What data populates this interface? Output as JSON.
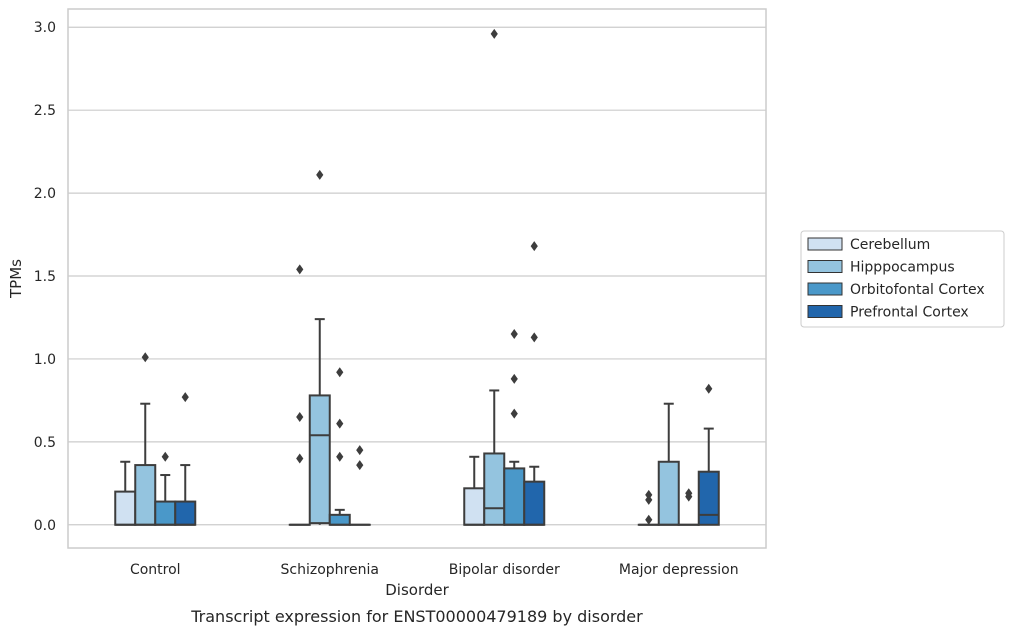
{
  "chart_data": {
    "type": "box",
    "title": "Transcript expression for ENST00000479189 by disorder",
    "xlabel": "Disorder",
    "ylabel": "TPMs",
    "ylim": [
      -0.14,
      3.11
    ],
    "yticks": [
      "0.0",
      "0.5",
      "1.0",
      "1.5",
      "2.0",
      "2.5",
      "3.0"
    ],
    "grid": true,
    "legend_position": "right",
    "categories": [
      "Control",
      "Schizophrenia",
      "Bipolar disorder",
      "Major depression"
    ],
    "series": [
      {
        "name": "Cerebellum",
        "color": "#d0e1f2",
        "boxes": [
          {
            "min": 0.0,
            "q1": 0.0,
            "median": 0.0,
            "q3": 0.2,
            "max": 0.38,
            "outliers": []
          },
          {
            "min": 0.0,
            "q1": 0.0,
            "median": 0.0,
            "q3": 0.0,
            "max": 0.0,
            "outliers": [
              0.4,
              0.65,
              1.54
            ]
          },
          {
            "min": 0.0,
            "q1": 0.0,
            "median": 0.0,
            "q3": 0.22,
            "max": 0.41,
            "outliers": []
          },
          {
            "min": 0.0,
            "q1": 0.0,
            "median": 0.0,
            "q3": 0.0,
            "max": 0.0,
            "outliers": [
              0.03,
              0.15,
              0.18
            ]
          }
        ]
      },
      {
        "name": "Hipppocampus",
        "color": "#94c4df",
        "boxes": [
          {
            "min": 0.0,
            "q1": 0.0,
            "median": 0.0,
            "q3": 0.36,
            "max": 0.73,
            "outliers": [
              1.01
            ]
          },
          {
            "min": 0.0,
            "q1": 0.01,
            "median": 0.54,
            "q3": 0.78,
            "max": 1.24,
            "outliers": [
              2.11
            ]
          },
          {
            "min": 0.0,
            "q1": 0.0,
            "median": 0.1,
            "q3": 0.43,
            "max": 0.81,
            "outliers": [
              2.96
            ]
          },
          {
            "min": 0.0,
            "q1": 0.0,
            "median": 0.0,
            "q3": 0.38,
            "max": 0.73,
            "outliers": []
          }
        ]
      },
      {
        "name": "Orbitofontal Cortex",
        "color": "#4a98c9",
        "boxes": [
          {
            "min": 0.0,
            "q1": 0.0,
            "median": 0.0,
            "q3": 0.14,
            "max": 0.3,
            "outliers": [
              0.41
            ]
          },
          {
            "min": 0.0,
            "q1": 0.0,
            "median": 0.0,
            "q3": 0.06,
            "max": 0.09,
            "outliers": [
              0.41,
              0.61,
              0.92
            ]
          },
          {
            "min": 0.0,
            "q1": 0.0,
            "median": 0.0,
            "q3": 0.34,
            "max": 0.38,
            "outliers": [
              0.67,
              0.88,
              1.15
            ]
          },
          {
            "min": 0.0,
            "q1": 0.0,
            "median": 0.0,
            "q3": 0.0,
            "max": 0.0,
            "outliers": [
              0.17,
              0.19
            ]
          }
        ]
      },
      {
        "name": "Prefrontal Cortex",
        "color": "#2166ac",
        "boxes": [
          {
            "min": 0.0,
            "q1": 0.0,
            "median": 0.0,
            "q3": 0.14,
            "max": 0.36,
            "outliers": [
              0.77
            ]
          },
          {
            "min": 0.0,
            "q1": 0.0,
            "median": 0.0,
            "q3": 0.0,
            "max": 0.0,
            "outliers": [
              0.36,
              0.45
            ]
          },
          {
            "min": 0.0,
            "q1": 0.0,
            "median": 0.0,
            "q3": 0.26,
            "max": 0.35,
            "outliers": [
              1.13,
              1.68
            ]
          },
          {
            "min": 0.0,
            "q1": 0.0,
            "median": 0.06,
            "q3": 0.32,
            "max": 0.58,
            "outliers": [
              0.82
            ]
          }
        ]
      }
    ]
  }
}
